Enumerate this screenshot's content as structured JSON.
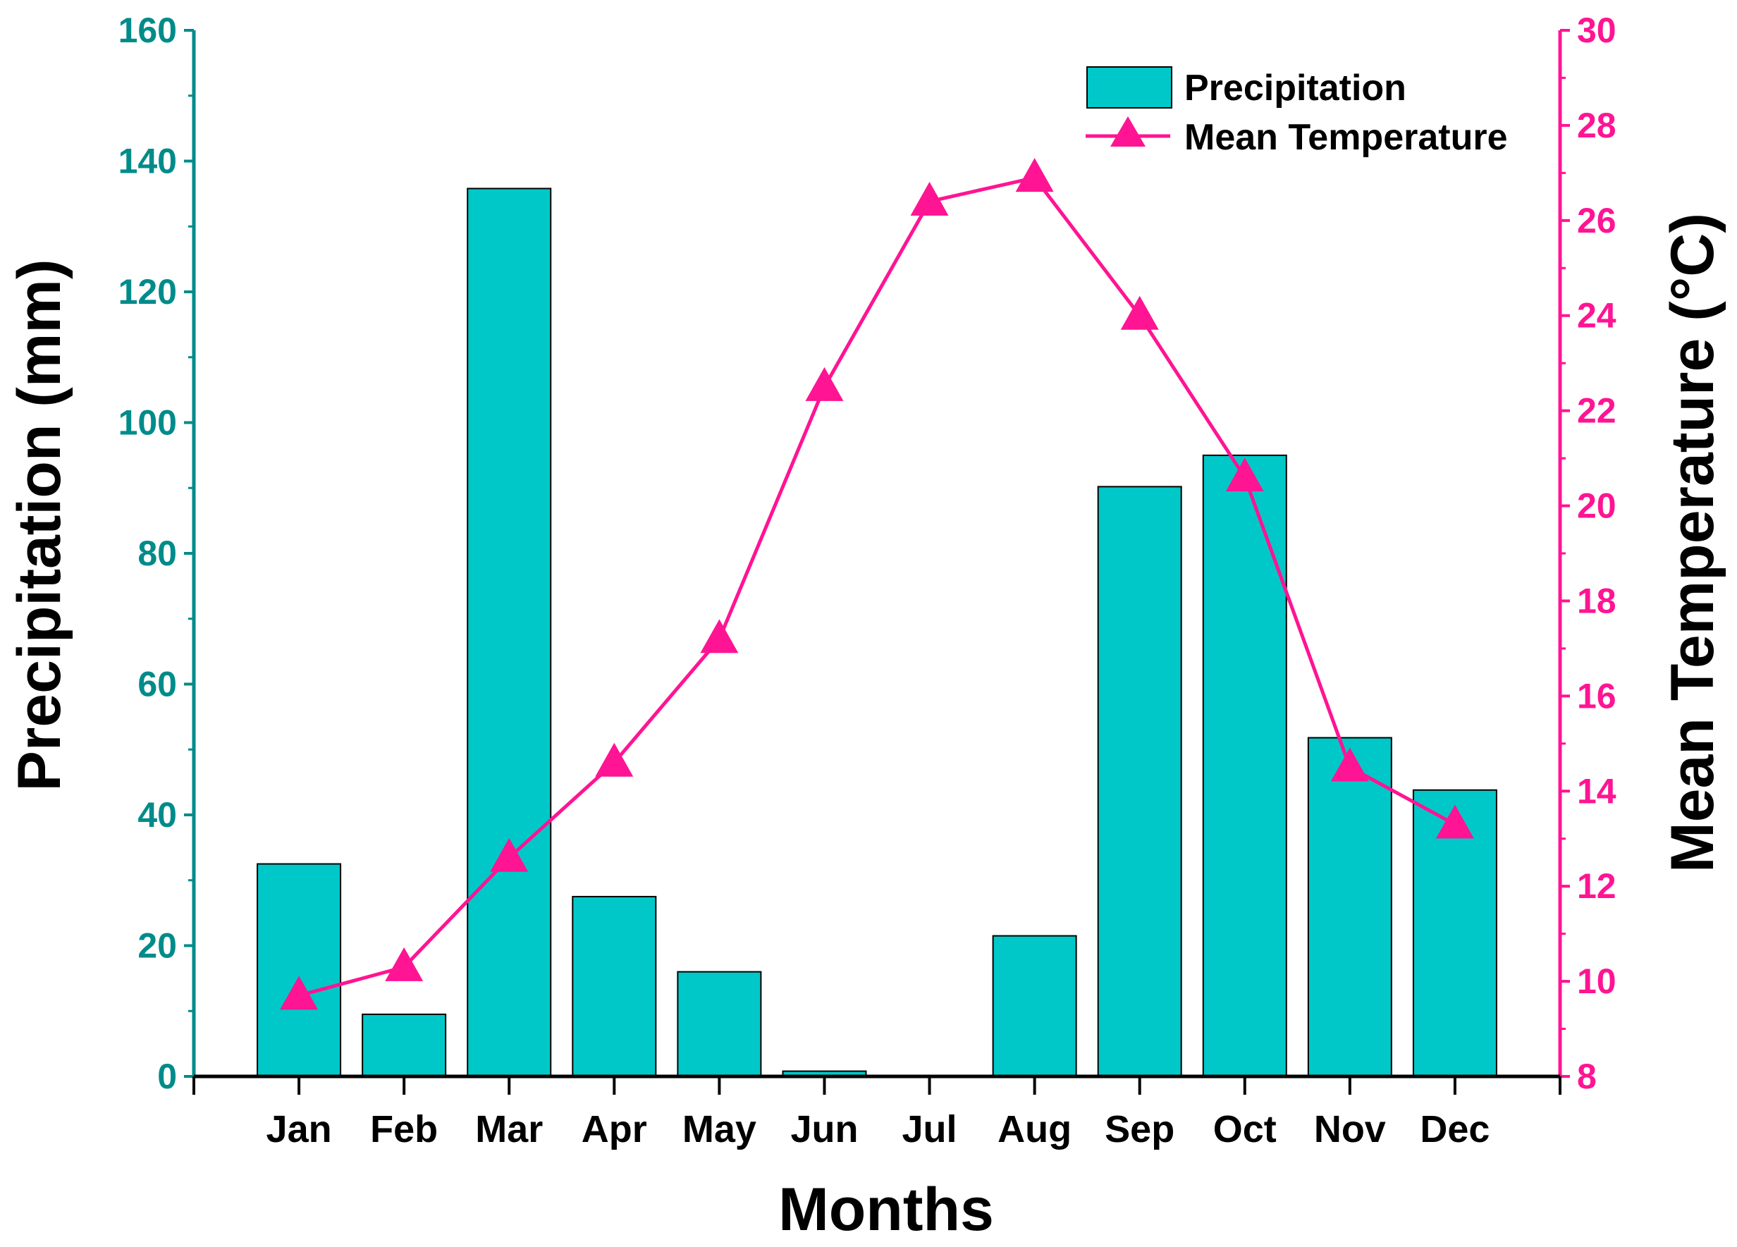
{
  "chart_data": {
    "type": "bar+line",
    "categories": [
      "Jan",
      "Feb",
      "Mar",
      "Apr",
      "May",
      "Jun",
      "Jul",
      "Aug",
      "Sep",
      "Oct",
      "Nov",
      "Dec"
    ],
    "series": [
      {
        "name": "Precipitation",
        "type": "bar",
        "axis": "left",
        "values": [
          32.5,
          9.5,
          135.8,
          27.5,
          16.0,
          0.8,
          0,
          21.5,
          90.2,
          95.0,
          51.8,
          43.8
        ]
      },
      {
        "name": "Mean Temperature",
        "type": "line",
        "axis": "right",
        "marker": "triangle",
        "values": [
          9.7,
          10.3,
          12.6,
          14.6,
          17.2,
          22.5,
          26.4,
          26.9,
          24.0,
          20.6,
          14.5,
          13.3
        ]
      }
    ],
    "xlabel": "Months",
    "ylabel_left": "Precipitation (mm)",
    "ylabel_right": "Mean Temperature (°C)",
    "ylim_left": [
      0,
      160
    ],
    "ylim_right": [
      8,
      30
    ],
    "yticks_left": [
      "0",
      "20",
      "40",
      "60",
      "80",
      "100",
      "120",
      "140",
      "160"
    ],
    "yticks_right": [
      "8",
      "10",
      "12",
      "14",
      "16",
      "18",
      "20",
      "22",
      "24",
      "26",
      "28",
      "30"
    ],
    "legend": {
      "position": "top-right",
      "entries": [
        "Precipitation",
        "Mean Temperature"
      ]
    },
    "colors": {
      "bar": "#00c8c8",
      "line": "#ff1493",
      "left_axis": "#008b8b",
      "right_axis": "#ff1493"
    }
  }
}
